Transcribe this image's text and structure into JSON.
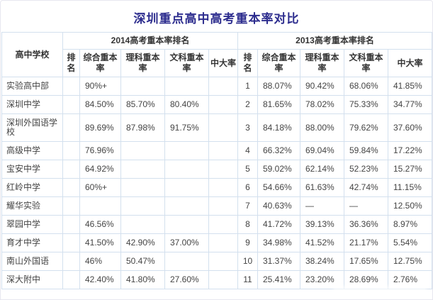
{
  "chart_data": {
    "type": "table",
    "title": "深圳重点高中高考重本率对比",
    "school_column_header": "高中学校",
    "column_groups": [
      {
        "label": "2014高考重本率排名",
        "span": 5
      },
      {
        "label": "2013高考重本率排名",
        "span": 5
      }
    ],
    "sub_headers": [
      "排名",
      "综合重本率",
      "理科重本率",
      "文科重本率",
      "中大率"
    ],
    "rows": [
      {
        "school": "实验高中部",
        "y2014": [
          "",
          "90%+",
          "",
          "",
          ""
        ],
        "y2013": [
          "1",
          "88.07%",
          "90.42%",
          "68.06%",
          "41.85%"
        ]
      },
      {
        "school": "深圳中学",
        "y2014": [
          "",
          "84.50%",
          "85.70%",
          "80.40%",
          ""
        ],
        "y2013": [
          "2",
          "81.65%",
          "78.02%",
          "75.33%",
          "34.77%"
        ]
      },
      {
        "school": "深圳外国语学校",
        "y2014": [
          "",
          "89.69%",
          "87.98%",
          "91.75%",
          ""
        ],
        "y2013": [
          "3",
          "84.18%",
          "88.00%",
          "79.62%",
          "37.60%"
        ]
      },
      {
        "school": "高级中学",
        "y2014": [
          "",
          "76.96%",
          "",
          "",
          ""
        ],
        "y2013": [
          "4",
          "66.32%",
          "69.04%",
          "59.84%",
          "17.22%"
        ]
      },
      {
        "school": "宝安中学",
        "y2014": [
          "",
          "64.92%",
          "",
          "",
          ""
        ],
        "y2013": [
          "5",
          "59.02%",
          "62.14%",
          "52.23%",
          "15.27%"
        ]
      },
      {
        "school": "红岭中学",
        "y2014": [
          "",
          "60%+",
          "",
          "",
          ""
        ],
        "y2013": [
          "6",
          "54.66%",
          "61.63%",
          "42.74%",
          "11.15%"
        ]
      },
      {
        "school": "耀华实验",
        "y2014": [
          "",
          "",
          "",
          "",
          ""
        ],
        "y2013": [
          "7",
          "40.63%",
          "—",
          "—",
          "12.50%"
        ]
      },
      {
        "school": "翠园中学",
        "y2014": [
          "",
          "46.56%",
          "",
          "",
          ""
        ],
        "y2013": [
          "8",
          "41.72%",
          "39.13%",
          "36.36%",
          "8.97%"
        ]
      },
      {
        "school": "育才中学",
        "y2014": [
          "",
          "41.50%",
          "42.90%",
          "37.00%",
          ""
        ],
        "y2013": [
          "9",
          "34.98%",
          "41.52%",
          "21.17%",
          "5.54%"
        ]
      },
      {
        "school": "南山外国语",
        "y2014": [
          "",
          "46%",
          "50.47%",
          "",
          ""
        ],
        "y2013": [
          "10",
          "31.37%",
          "38.24%",
          "17.65%",
          "12.75%"
        ]
      },
      {
        "school": "深大附中",
        "y2014": [
          "",
          "42.40%",
          "41.80%",
          "27.60%",
          ""
        ],
        "y2013": [
          "11",
          "25.41%",
          "23.20%",
          "28.69%",
          "2.76%"
        ]
      }
    ]
  }
}
